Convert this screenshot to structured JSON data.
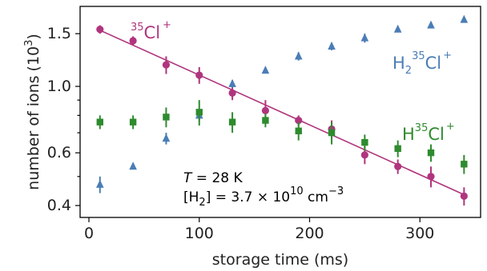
{
  "chart_data": {
    "type": "scatter",
    "xlabel": "storage time (ms)",
    "ylabel": "number of ions",
    "ylabel_unit": {
      "open": "(",
      "base": "10",
      "exp": "3",
      "close": ")"
    },
    "yscale": "log",
    "xlim": [
      -8,
      355
    ],
    "ylim": [
      0.365,
      1.85
    ],
    "xticks": [
      0,
      100,
      200,
      300
    ],
    "xtick_labels": [
      "0",
      "100",
      "200",
      "300"
    ],
    "yticks": [
      0.4,
      0.6,
      1.0,
      1.5
    ],
    "ytick_labels": [
      "0.4",
      "0.6",
      "1.0",
      "1.5"
    ],
    "yminor_ticks": [
      0.5,
      0.7,
      0.8,
      0.9
    ],
    "annotations": {
      "temperature": {
        "symbol": "T",
        "text": " = 28 K"
      },
      "density": {
        "prefix": "[H",
        "sub": "2",
        "mid": "] = 3.7 × 10",
        "exp": "10",
        "unit": " cm",
        "unit_exp": "−3"
      }
    },
    "series": [
      {
        "name": "³⁵Cl⁺",
        "label_parts": {
          "pre_sup": "35",
          "base": "Cl",
          "post_sup": "+"
        },
        "marker": "circle",
        "color": "#B0357E",
        "x": [
          10,
          40,
          70,
          100,
          130,
          160,
          190,
          220,
          250,
          280,
          310,
          340
        ],
        "y": [
          1.55,
          1.42,
          1.18,
          1.09,
          0.95,
          0.83,
          0.77,
          0.72,
          0.59,
          0.54,
          0.5,
          0.43
        ],
        "err": [
          0.05,
          0.05,
          0.08,
          0.07,
          0.05,
          0.07,
          0.03,
          0.05,
          0.04,
          0.03,
          0.04,
          0.03
        ],
        "fit": {
          "x": [
            10,
            340
          ],
          "y": [
            1.54,
            0.435
          ]
        }
      },
      {
        "name": "H₂³⁵Cl⁺",
        "label_parts": {
          "pre": "H",
          "sub": "2",
          "pre_sup": "35",
          "base": "Cl",
          "post_sup": "+"
        },
        "marker": "triangle",
        "color": "#4A7DB7",
        "x": [
          10,
          40,
          70,
          100,
          130,
          160,
          190,
          220,
          250,
          280,
          310,
          340
        ],
        "y": [
          0.47,
          0.54,
          0.67,
          0.8,
          1.02,
          1.13,
          1.26,
          1.36,
          1.45,
          1.55,
          1.6,
          1.67
        ],
        "err": [
          0.03,
          0.01,
          0.03,
          0.03,
          0.03,
          0.02,
          0.04,
          0.04,
          0.05,
          0.02,
          0.03,
          0.03
        ]
      },
      {
        "name": "H³⁵Cl⁺",
        "label_parts": {
          "pre": "H",
          "pre_sup": "35",
          "base": "Cl",
          "post_sup": "+"
        },
        "marker": "square",
        "color": "#2E8B2E",
        "x": [
          10,
          40,
          70,
          100,
          130,
          160,
          190,
          220,
          250,
          280,
          310,
          340
        ],
        "y": [
          0.76,
          0.76,
          0.79,
          0.82,
          0.76,
          0.77,
          0.71,
          0.7,
          0.65,
          0.62,
          0.6,
          0.55
        ],
        "err": [
          0.04,
          0.04,
          0.06,
          0.08,
          0.06,
          0.04,
          0.05,
          0.06,
          0.04,
          0.04,
          0.04,
          0.04
        ]
      }
    ]
  }
}
